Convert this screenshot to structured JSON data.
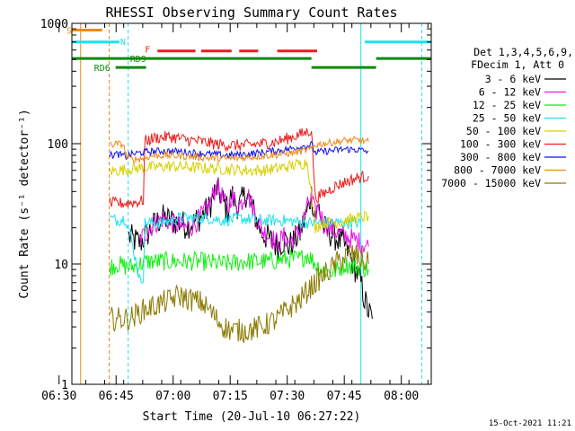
{
  "chart_data": {
    "type": "line",
    "title": "RHESSI Observing Summary Count Rates",
    "xlabel": "Start Time (20-Jul-10 06:27:22)",
    "ylabel": "Count Rate (s⁻¹ detector⁻¹)",
    "y_scale": "log",
    "ylim": [
      1,
      1000
    ],
    "xlim_minutes": [
      6.0,
      100.5
    ],
    "x_tick_labels": [
      "06:30",
      "06:45",
      "07:00",
      "07:15",
      "07:30",
      "07:45",
      "08:00"
    ],
    "x_tick_minutes": [
      2.63,
      17.63,
      32.63,
      47.63,
      62.63,
      77.63,
      92.63
    ],
    "y_tick_labels": [
      "1",
      "10",
      "100",
      "1000"
    ],
    "y_tick_values": [
      1,
      10,
      100,
      1000
    ],
    "grid": false,
    "legend_placement": "right",
    "legend_header": [
      "Det 1,3,4,5,6,9,",
      "FDecim 1, Att 0"
    ],
    "timestamp": "15-Oct-2021 11:21",
    "flags": [
      {
        "label": "S",
        "color": "#ee8a1a",
        "level": 880,
        "segments": [
          [
            6.0,
            14.0
          ]
        ]
      },
      {
        "label": "N",
        "color": "#19e3f0",
        "level": 700,
        "segments": [
          [
            6.0,
            18.5
          ],
          [
            83.0,
            100.5
          ]
        ]
      },
      {
        "label": "F",
        "color": "#ee1c1c",
        "level": 590,
        "segments": [
          [
            28.5,
            38.5
          ],
          [
            40.0,
            48.0
          ],
          [
            50.0,
            55.0
          ],
          [
            60.0,
            70.5
          ]
        ]
      },
      {
        "label": "RD6",
        "color": "#0a8a0a",
        "level": 430,
        "segments": [
          [
            17.5,
            25.5
          ],
          [
            69.0,
            86.0
          ]
        ]
      },
      {
        "label": "RD9",
        "color": "#0a8a0a",
        "level": 510,
        "segments": [
          [
            6.0,
            69.0
          ],
          [
            86.0,
            100.5
          ]
        ]
      }
    ],
    "vertical_markers": [
      {
        "minute": 8.3,
        "color": "#ee8a1a",
        "style": "solid"
      },
      {
        "minute": 15.8,
        "color": "#ee8a1a",
        "style": "dashed"
      },
      {
        "minute": 20.8,
        "color": "#19e3f0",
        "style": "dashed"
      },
      {
        "minute": 82.0,
        "color": "#19e3f0",
        "style": "solid"
      },
      {
        "minute": 98.0,
        "color": "#19e3f0",
        "style": "dashed"
      }
    ],
    "series": [
      {
        "name": "3 - 6 keV",
        "color": "#000000",
        "points": [
          [
            21,
            17
          ],
          [
            22,
            16
          ],
          [
            24,
            15
          ],
          [
            26,
            18
          ],
          [
            28,
            22
          ],
          [
            30,
            24
          ],
          [
            32,
            23
          ],
          [
            34,
            22
          ],
          [
            36,
            21
          ],
          [
            38,
            22
          ],
          [
            40,
            25
          ],
          [
            42,
            29
          ],
          [
            44,
            42
          ],
          [
            45,
            38
          ],
          [
            46,
            32
          ],
          [
            47,
            28
          ],
          [
            48,
            38
          ],
          [
            49,
            32
          ],
          [
            50,
            30
          ],
          [
            52,
            40
          ],
          [
            53,
            32
          ],
          [
            54,
            26
          ],
          [
            56,
            18
          ],
          [
            58,
            16
          ],
          [
            60,
            14
          ],
          [
            62,
            16
          ],
          [
            63,
            14
          ],
          [
            64,
            15
          ],
          [
            66,
            18
          ],
          [
            68,
            28
          ],
          [
            69,
            38
          ],
          [
            70,
            25
          ],
          [
            71,
            30
          ],
          [
            72,
            20
          ],
          [
            74,
            18
          ],
          [
            76,
            16
          ],
          [
            78,
            14
          ],
          [
            80,
            10
          ],
          [
            82,
            7
          ],
          [
            83,
            5
          ],
          [
            84,
            4
          ],
          [
            85,
            3.5
          ]
        ],
        "noise": 0.12
      },
      {
        "name": "6 - 12 keV",
        "color": "#ee10ee",
        "points": [
          [
            24,
            16
          ],
          [
            26,
            19
          ],
          [
            28,
            22
          ],
          [
            30,
            24
          ],
          [
            32,
            22
          ],
          [
            34,
            21
          ],
          [
            36,
            20
          ],
          [
            38,
            21
          ],
          [
            40,
            25
          ],
          [
            42,
            30
          ],
          [
            44,
            45
          ],
          [
            45,
            40
          ],
          [
            46,
            33
          ],
          [
            47,
            28
          ],
          [
            48,
            38
          ],
          [
            49,
            32
          ],
          [
            50,
            30
          ],
          [
            52,
            40
          ],
          [
            53,
            33
          ],
          [
            54,
            27
          ],
          [
            56,
            19
          ],
          [
            58,
            17
          ],
          [
            60,
            15
          ],
          [
            62,
            17
          ],
          [
            63,
            15
          ],
          [
            64,
            16
          ],
          [
            66,
            19
          ],
          [
            68,
            30
          ],
          [
            69,
            36
          ],
          [
            70,
            26
          ],
          [
            71,
            30
          ],
          [
            72,
            22
          ],
          [
            74,
            20
          ],
          [
            76,
            18
          ],
          [
            78,
            17
          ],
          [
            80,
            16
          ],
          [
            82,
            15
          ],
          [
            84,
            14
          ]
        ],
        "noise": 0.09
      },
      {
        "name": "12 - 25 keV",
        "color": "#10ee10",
        "points": [
          [
            16,
            9.5
          ],
          [
            18,
            10
          ],
          [
            20,
            9.5
          ],
          [
            22,
            9.5
          ],
          [
            24,
            10
          ],
          [
            26,
            10.5
          ],
          [
            28,
            10.5
          ],
          [
            30,
            10.5
          ],
          [
            34,
            10.5
          ],
          [
            40,
            10.5
          ],
          [
            46,
            10
          ],
          [
            52,
            10.5
          ],
          [
            58,
            10.5
          ],
          [
            62,
            11
          ],
          [
            66,
            11
          ],
          [
            68,
            12
          ],
          [
            70,
            10
          ],
          [
            72,
            9
          ],
          [
            74,
            8.5
          ],
          [
            76,
            9
          ],
          [
            78,
            10
          ],
          [
            80,
            9.5
          ],
          [
            82,
            9.5
          ],
          [
            84,
            9
          ]
        ],
        "noise": 0.08
      },
      {
        "name": "25 - 50 keV",
        "color": "#19e3f0",
        "points": [
          [
            16,
            24
          ],
          [
            18,
            23
          ],
          [
            20,
            24
          ],
          [
            21,
            20
          ],
          [
            22,
            14
          ],
          [
            23,
            10
          ],
          [
            24,
            7
          ],
          [
            24.8,
            8
          ],
          [
            25.2,
            22
          ],
          [
            27,
            22
          ],
          [
            30,
            22
          ],
          [
            34,
            24
          ],
          [
            38,
            24
          ],
          [
            42,
            24
          ],
          [
            46,
            23
          ],
          [
            50,
            24
          ],
          [
            56,
            23
          ],
          [
            62,
            23
          ],
          [
            68,
            22
          ],
          [
            70,
            22
          ],
          [
            74,
            22
          ],
          [
            78,
            22
          ],
          [
            82,
            22
          ]
        ],
        "noise": 0.05
      },
      {
        "name": "50 - 100 keV",
        "color": "#d8d000",
        "points": [
          [
            16,
            59
          ],
          [
            20,
            61
          ],
          [
            24,
            63
          ],
          [
            28,
            64
          ],
          [
            32,
            65
          ],
          [
            36,
            64
          ],
          [
            40,
            63
          ],
          [
            44,
            62
          ],
          [
            48,
            61
          ],
          [
            52,
            60
          ],
          [
            56,
            60
          ],
          [
            60,
            62
          ],
          [
            64,
            66
          ],
          [
            68,
            70
          ],
          [
            70,
            20
          ],
          [
            71,
            21
          ],
          [
            72,
            22
          ],
          [
            75,
            22
          ],
          [
            78,
            23
          ],
          [
            81,
            24
          ],
          [
            84,
            25
          ]
        ],
        "noise": 0.05
      },
      {
        "name": "100 - 300 keV",
        "color": "#ee1c1c",
        "points": [
          [
            16,
            32
          ],
          [
            20,
            32
          ],
          [
            24,
            33
          ],
          [
            24.8,
            34
          ],
          [
            25.2,
            105
          ],
          [
            28,
            112
          ],
          [
            32,
            114
          ],
          [
            36,
            108
          ],
          [
            40,
            104
          ],
          [
            44,
            99
          ],
          [
            48,
            97
          ],
          [
            52,
            97
          ],
          [
            56,
            100
          ],
          [
            60,
            104
          ],
          [
            64,
            114
          ],
          [
            67,
            122
          ],
          [
            69,
            130
          ],
          [
            70,
            35
          ],
          [
            72,
            38
          ],
          [
            75,
            44
          ],
          [
            78,
            48
          ],
          [
            81,
            52
          ],
          [
            84,
            54
          ]
        ],
        "noise": 0.05
      },
      {
        "name": "300 - 800 keV",
        "color": "#1010ee",
        "points": [
          [
            16,
            80
          ],
          [
            18,
            82
          ],
          [
            19,
            80
          ],
          [
            20,
            78
          ],
          [
            22,
            82
          ],
          [
            24,
            84
          ],
          [
            26,
            86
          ],
          [
            30,
            87
          ],
          [
            34,
            86
          ],
          [
            38,
            84
          ],
          [
            42,
            82
          ],
          [
            46,
            80
          ],
          [
            50,
            81
          ],
          [
            54,
            83
          ],
          [
            58,
            86
          ],
          [
            62,
            89
          ],
          [
            66,
            94
          ],
          [
            69,
            98
          ],
          [
            70,
            84
          ],
          [
            72,
            86
          ],
          [
            75,
            88
          ],
          [
            78,
            90
          ],
          [
            81,
            89
          ],
          [
            84,
            86
          ]
        ],
        "noise": 0.03
      },
      {
        "name": "800 - 7000 keV",
        "color": "#ee8a1a",
        "points": [
          [
            16,
            98
          ],
          [
            18,
            100
          ],
          [
            19.5,
            98
          ],
          [
            20.5,
            76
          ],
          [
            22,
            74
          ],
          [
            24,
            75
          ],
          [
            25,
            76
          ],
          [
            27,
            79
          ],
          [
            30,
            80
          ],
          [
            34,
            79
          ],
          [
            38,
            78
          ],
          [
            42,
            76
          ],
          [
            46,
            75
          ],
          [
            50,
            76
          ],
          [
            54,
            78
          ],
          [
            58,
            80
          ],
          [
            62,
            82
          ],
          [
            66,
            86
          ],
          [
            69,
            90
          ],
          [
            70,
            98
          ],
          [
            72,
            100
          ],
          [
            75,
            103
          ],
          [
            78,
            106
          ],
          [
            81,
            107
          ],
          [
            84,
            104
          ]
        ],
        "noise": 0.03
      },
      {
        "name": "7000 - 15000 keV",
        "color": "#8a7a00",
        "points": [
          [
            16,
            3.5
          ],
          [
            20,
            3.5
          ],
          [
            22,
            3.6
          ],
          [
            24,
            4
          ],
          [
            26,
            4.3
          ],
          [
            28,
            4.5
          ],
          [
            30,
            4.8
          ],
          [
            32,
            5
          ],
          [
            34,
            5.5
          ],
          [
            36,
            5.2
          ],
          [
            38,
            5
          ],
          [
            40,
            4.8
          ],
          [
            42,
            4.2
          ],
          [
            44,
            3.5
          ],
          [
            46,
            3
          ],
          [
            48,
            2.8
          ],
          [
            52,
            2.8
          ],
          [
            56,
            3
          ],
          [
            60,
            3.5
          ],
          [
            62,
            4
          ],
          [
            64,
            4.5
          ],
          [
            66,
            5
          ],
          [
            68,
            6
          ],
          [
            70,
            7
          ],
          [
            72,
            8
          ],
          [
            74,
            9
          ],
          [
            76,
            10.5
          ],
          [
            78,
            11.5
          ],
          [
            80,
            12
          ],
          [
            82,
            11
          ],
          [
            84,
            10
          ]
        ],
        "noise": 0.1
      }
    ]
  }
}
